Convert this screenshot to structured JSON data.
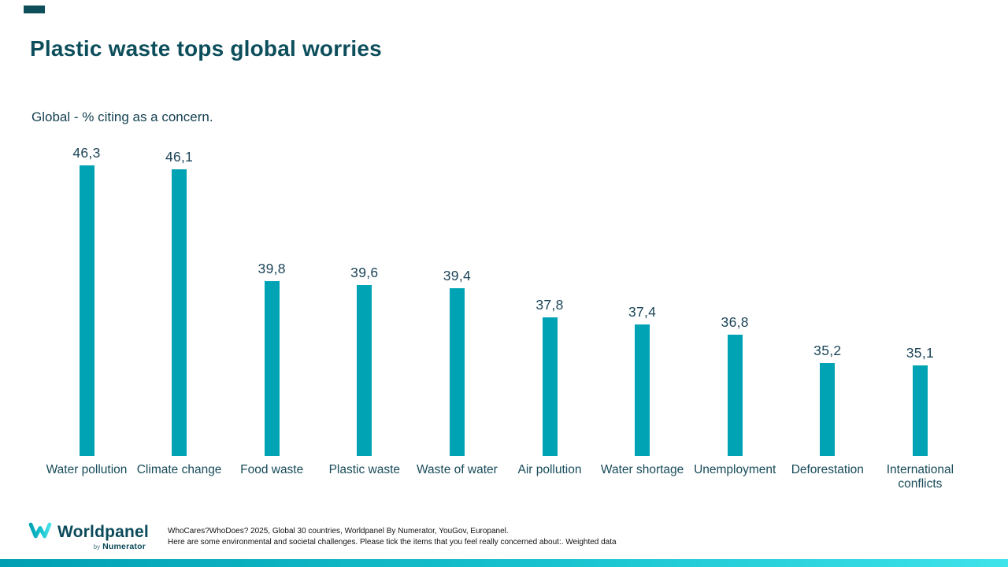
{
  "header": {
    "title": "Plastic waste tops global worries",
    "subtitle": "Global - % citing as a concern."
  },
  "chart_data": {
    "type": "bar",
    "title": "Plastic waste tops global worries",
    "subtitle": "Global - % citing as a concern.",
    "categories": [
      "Water pollution",
      "Climate change",
      "Food waste",
      "Plastic waste",
      "Waste of water",
      "Air pollution",
      "Water shortage",
      "Unemployment",
      "Deforestation",
      "International conflicts"
    ],
    "values": [
      46.3,
      46.1,
      39.8,
      39.6,
      39.4,
      37.8,
      37.4,
      36.8,
      35.2,
      35.1
    ],
    "value_labels": [
      "46,3",
      "46,1",
      "39,8",
      "39,6",
      "39,4",
      "37,8",
      "37,4",
      "36,8",
      "35,2",
      "35,1"
    ],
    "xlabel": "",
    "ylabel": "% citing as a concern",
    "ylim": [
      30,
      48
    ],
    "grid": false,
    "legend": false,
    "bar_color": "#00a3b4",
    "data_label_color": "#1b4458"
  },
  "footer": {
    "logo": {
      "brand": "Worldpanel",
      "by": "by",
      "sub_brand": "Numerator"
    },
    "source_line1": "WhoCares?WhoDoes? 2025, Global 30 countries, Worldpanel By Numerator, YouGov, Europanel.",
    "source_line2": "Here are some environmental and societal challenges. Please tick the items that you feel really concerned about:. Weighted data"
  },
  "colors": {
    "accent_bar": "#00a3b4",
    "title_text": "#0c4e5b",
    "label_text": "#174a59",
    "strip_gradient_start": "#00a0b2",
    "strip_gradient_end": "#3fe3ea"
  }
}
